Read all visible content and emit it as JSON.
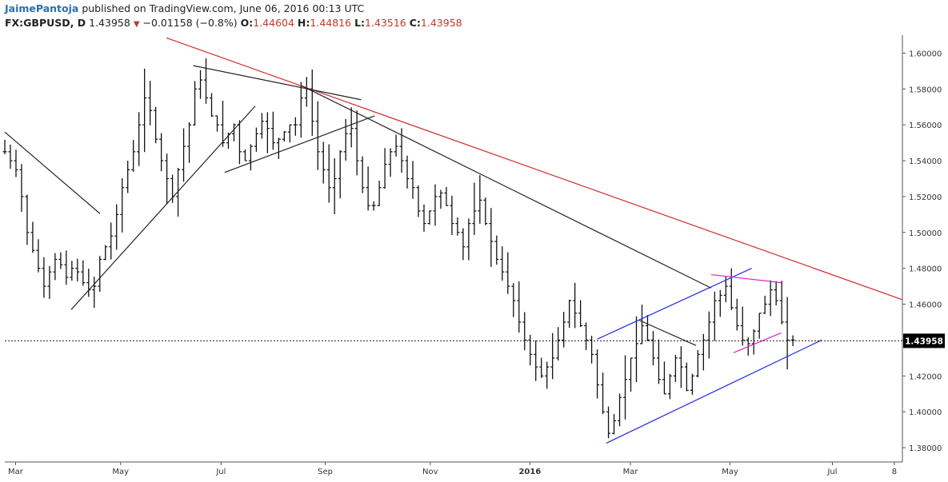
{
  "header": {
    "user": "JaimePantoja",
    "published": "published on TradingView.com, June 06, 2016 00:13 UTC",
    "symbol": "FX:GBPUSD, D",
    "last": "1.43958",
    "change": "−0.01158 (−0.8%)",
    "o_label": "O:",
    "o_val": "1.44604",
    "h_label": "H:",
    "h_val": "1.44816",
    "l_label": "L:",
    "l_val": "1.43516",
    "c_label": "C:",
    "c_val": "1.43958"
  },
  "chart_data": {
    "type": "ohlc",
    "ylim": [
      1.372,
      1.61
    ],
    "y_ticks": [
      "1.60000",
      "1.58000",
      "1.56000",
      "1.54000",
      "1.52000",
      "1.50000",
      "1.48000",
      "1.46000",
      "1.44000",
      "1.42000",
      "1.40000",
      "1.38000"
    ],
    "x_ticks": [
      {
        "label": "Mar",
        "bold": false
      },
      {
        "label": "May",
        "bold": false
      },
      {
        "label": "Jul",
        "bold": false
      },
      {
        "label": "Sep",
        "bold": false
      },
      {
        "label": "Nov",
        "bold": false
      },
      {
        "label": "2016",
        "bold": true
      },
      {
        "label": "Mar",
        "bold": false
      },
      {
        "label": "May",
        "bold": false
      },
      {
        "label": "Jul",
        "bold": false
      },
      {
        "label": "8",
        "bold": false
      }
    ],
    "last_price": 1.43958,
    "last_price_label": "1.43958",
    "close_series": [
      1.545,
      1.54,
      1.535,
      1.52,
      1.5,
      1.49,
      1.48,
      1.47,
      1.478,
      1.485,
      1.482,
      1.475,
      1.48,
      1.478,
      1.472,
      1.468,
      1.47,
      1.485,
      1.492,
      1.498,
      1.51,
      1.525,
      1.535,
      1.545,
      1.56,
      1.575,
      1.568,
      1.552,
      1.54,
      1.53,
      1.52,
      1.535,
      1.548,
      1.56,
      1.58,
      1.585,
      1.575,
      1.565,
      1.56,
      1.55,
      1.555,
      1.56,
      1.545,
      1.54,
      1.548,
      1.555,
      1.562,
      1.558,
      1.55,
      1.552,
      1.556,
      1.56,
      1.56,
      1.575,
      1.58,
      1.562,
      1.545,
      1.535,
      1.525,
      1.53,
      1.545,
      1.555,
      1.558,
      1.54,
      1.525,
      1.515,
      1.515,
      1.525,
      1.538,
      1.545,
      1.548,
      1.54,
      1.53,
      1.525,
      1.512,
      1.505,
      1.512,
      1.52,
      1.522,
      1.515,
      1.505,
      1.5,
      1.492,
      1.505,
      1.512,
      1.518,
      1.505,
      1.495,
      1.485,
      1.478,
      1.47,
      1.462,
      1.45,
      1.44,
      1.432,
      1.425,
      1.42,
      1.425,
      1.43,
      1.44,
      1.45,
      1.462,
      1.455,
      1.448,
      1.44,
      1.432,
      1.415,
      1.4,
      1.388,
      1.395,
      1.408,
      1.418,
      1.43,
      1.438,
      1.448,
      1.44,
      1.43,
      1.418,
      1.41,
      1.42,
      1.43,
      1.425,
      1.412,
      1.42,
      1.432,
      1.44,
      1.45,
      1.462,
      1.465,
      1.47,
      1.458,
      1.448,
      1.44,
      1.438,
      1.445,
      1.455,
      1.46,
      1.468,
      1.462,
      1.45,
      1.44,
      1.44
    ],
    "trendlines": [
      {
        "color": "#d42a2a",
        "from": [
          0.18,
          1.6085
        ],
        "to": [
          1.0,
          1.4625
        ]
      },
      {
        "color": "#222222",
        "from": [
          0.0,
          1.556
        ],
        "to": [
          0.106,
          1.5105
        ]
      },
      {
        "color": "#222222",
        "from": [
          0.074,
          1.457
        ],
        "to": [
          0.279,
          1.5705
        ]
      },
      {
        "color": "#222222",
        "from": [
          0.21,
          1.593
        ],
        "to": [
          0.397,
          1.574
        ]
      },
      {
        "color": "#222222",
        "from": [
          0.245,
          1.5335
        ],
        "to": [
          0.412,
          1.565
        ]
      },
      {
        "color": "#222222",
        "from": [
          0.33,
          1.582
        ],
        "to": [
          0.787,
          1.469
        ]
      },
      {
        "color": "#222222",
        "from": [
          0.707,
          1.451
        ],
        "to": [
          0.77,
          1.437
        ]
      },
      {
        "color": "#1f2be0",
        "from": [
          0.66,
          1.4405
        ],
        "to": [
          0.832,
          1.48
        ]
      },
      {
        "color": "#1f2be0",
        "from": [
          0.67,
          1.3825
        ],
        "to": [
          0.91,
          1.44
        ]
      },
      {
        "color": "#e020c8",
        "from": [
          0.787,
          1.4765
        ],
        "to": [
          0.865,
          1.472
        ]
      },
      {
        "color": "#e020c8",
        "from": [
          0.812,
          1.433
        ],
        "to": [
          0.865,
          1.444
        ]
      }
    ]
  }
}
